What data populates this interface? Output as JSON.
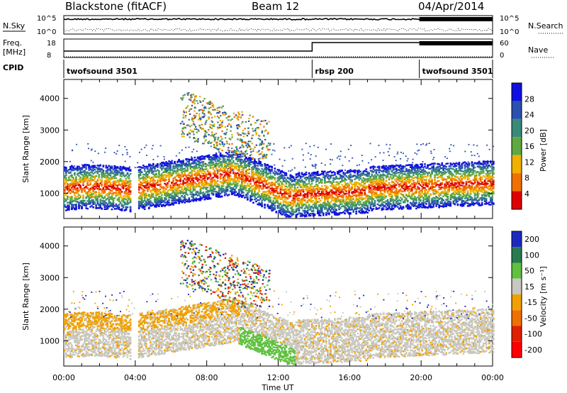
{
  "header": {
    "station": "Blackstone (fitACF)",
    "beam": "Beam 12",
    "date": "04/Apr/2014"
  },
  "panels": {
    "nsky_label": "N.Sky",
    "nsearch_label": "N.Search",
    "freq_label_1": "Freq.",
    "freq_label_2": "[MHz]",
    "nave_label": "Nave",
    "cpid_label": "CPID",
    "nsky_ticks": [
      "10^5",
      "10^0"
    ],
    "nsearch_ticks": [
      "10^5",
      "10^0"
    ],
    "freq_ticks": [
      "18",
      "8"
    ],
    "nave_ticks": [
      "60",
      "0"
    ]
  },
  "cpid": [
    {
      "label": "twofsound 3501",
      "start_h": 0,
      "end_h": 13.9
    },
    {
      "label": "rbsp 200",
      "start_h": 13.9,
      "end_h": 19.9
    },
    {
      "label": "twofsound 3501",
      "start_h": 19.9,
      "end_h": 24
    }
  ],
  "chart_data": [
    {
      "type": "heatmap",
      "name": "power",
      "ylabel": "Slant Range [km]",
      "xlabel": "Time UT",
      "x_ticks": [
        "00:00",
        "04:00",
        "08:00",
        "12:00",
        "16:00",
        "20:00",
        "00:00"
      ],
      "y_ticks": [
        1000,
        2000,
        3000,
        4000
      ],
      "ylim": [
        200,
        4600
      ],
      "xlim_hours": [
        0,
        24
      ],
      "colorbar_label": "Power [dB]",
      "colorbar_ticks": [
        4,
        8,
        12,
        16,
        20,
        24,
        28
      ],
      "colorbar_colors": [
        "#1010e0",
        "#2a50b0",
        "#3a8a7a",
        "#60a840",
        "#f0b000",
        "#f07000",
        "#e00000"
      ]
    },
    {
      "type": "heatmap",
      "name": "velocity",
      "ylabel": "Slant Range [km]",
      "xlabel": "Time UT",
      "x_ticks": [
        "00:00",
        "04:00",
        "08:00",
        "12:00",
        "16:00",
        "20:00",
        "00:00"
      ],
      "y_ticks": [
        1000,
        2000,
        3000,
        4000
      ],
      "ylim": [
        200,
        4600
      ],
      "xlim_hours": [
        0,
        24
      ],
      "colorbar_label": "Velocity [m s⁻¹]",
      "colorbar_ticks": [
        "200",
        "100",
        "50",
        "15",
        "-15",
        "-50",
        "-100",
        "-200"
      ],
      "colorbar_colors": [
        "#1a2ac0",
        "#2a7a50",
        "#60c040",
        "#c8c8c0",
        "#f0a000",
        "#f07000",
        "#e02000",
        "#ff0000"
      ]
    }
  ]
}
